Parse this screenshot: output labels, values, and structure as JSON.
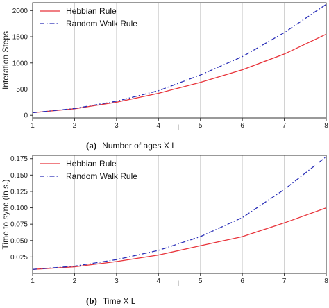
{
  "chart_data": [
    {
      "type": "line",
      "panel_tag": "(a)",
      "caption": "Number of ages X L",
      "xlabel": "L",
      "ylabel": "Interation Steps",
      "x": [
        1,
        2,
        3,
        4,
        5,
        6,
        7,
        8
      ],
      "xlim": [
        1,
        8
      ],
      "ylim": [
        -50,
        2150
      ],
      "yticks": [
        0,
        500,
        1000,
        1500,
        2000
      ],
      "ytick_labels": [
        "0",
        "500",
        "1000",
        "1500",
        "2000"
      ],
      "grid": "vertical",
      "legend_position": "top-left",
      "series": [
        {
          "name": "Hebbian Rule",
          "color": "#e8333a",
          "style": "solid",
          "values": [
            50,
            125,
            250,
            420,
            630,
            870,
            1170,
            1550
          ]
        },
        {
          "name": "Random Walk Rule",
          "color": "#2a2fb8",
          "style": "dashdot",
          "values": [
            50,
            130,
            270,
            470,
            770,
            1120,
            1580,
            2120
          ]
        }
      ]
    },
    {
      "type": "line",
      "panel_tag": "(b)",
      "caption": "Time X L",
      "xlabel": "L",
      "ylabel": "Time to sync (in s.)",
      "x": [
        1,
        2,
        3,
        4,
        5,
        6,
        7,
        8
      ],
      "xlim": [
        1,
        8
      ],
      "ylim": [
        0,
        0.18
      ],
      "yticks": [
        0.025,
        0.05,
        0.075,
        0.1,
        0.125,
        0.15,
        0.175
      ],
      "ytick_labels": [
        "0.025",
        "0.050",
        "0.075",
        "0.100",
        "0.125",
        "0.150",
        "0.175"
      ],
      "grid": "vertical",
      "legend_position": "top-left",
      "series": [
        {
          "name": "Hebbian Rule",
          "color": "#e8333a",
          "style": "solid",
          "values": [
            0.006,
            0.01,
            0.018,
            0.028,
            0.042,
            0.056,
            0.077,
            0.1
          ]
        },
        {
          "name": "Random Walk Rule",
          "color": "#2a2fb8",
          "style": "dashdot",
          "values": [
            0.006,
            0.011,
            0.021,
            0.035,
            0.056,
            0.085,
            0.128,
            0.178
          ]
        }
      ]
    }
  ]
}
